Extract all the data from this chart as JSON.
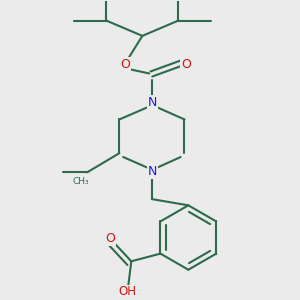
{
  "bg_color": "#ebebeb",
  "bond_color": "#2d6b4a",
  "n_color": "#1a1aee",
  "o_color": "#dd1111",
  "lw": 1.5,
  "fig_size": [
    3.0,
    3.0
  ],
  "dpi": 100,
  "xlim": [
    -0.5,
    2.8
  ],
  "ylim": [
    -0.3,
    3.5
  ]
}
